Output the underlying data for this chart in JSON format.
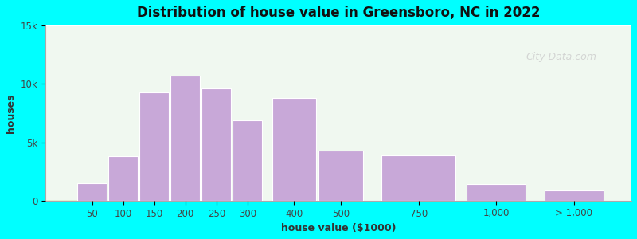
{
  "title": "Distribution of house value in Greensboro, NC in 2022",
  "xlabel": "house value ($1000)",
  "ylabel": "houses",
  "background_color": "#00FFFF",
  "plot_bg_top": "#e8f5e9",
  "plot_bg_bottom": "#f5f5ff",
  "bar_color": "#c8a8d8",
  "bar_edge_color": "#ffffff",
  "ylim": [
    0,
    15000
  ],
  "yticks": [
    0,
    5000,
    10000,
    15000
  ],
  "ytick_labels": [
    "0",
    "5k",
    "10k",
    "15k"
  ],
  "watermark": "City-Data.com",
  "categories": [
    "50",
    "100",
    "150",
    "200",
    "250",
    "300",
    "400",
    "500",
    "750",
    "1,000",
    "> 1,000"
  ],
  "bar_centers": [
    50,
    100,
    150,
    200,
    250,
    300,
    400,
    500,
    750,
    1000,
    1150
  ],
  "bar_widths": [
    50,
    50,
    50,
    50,
    50,
    50,
    100,
    100,
    250,
    250,
    100
  ],
  "values": [
    1500,
    3800,
    9300,
    10700,
    9600,
    6900,
    8800,
    4300,
    3900,
    1400,
    900
  ]
}
